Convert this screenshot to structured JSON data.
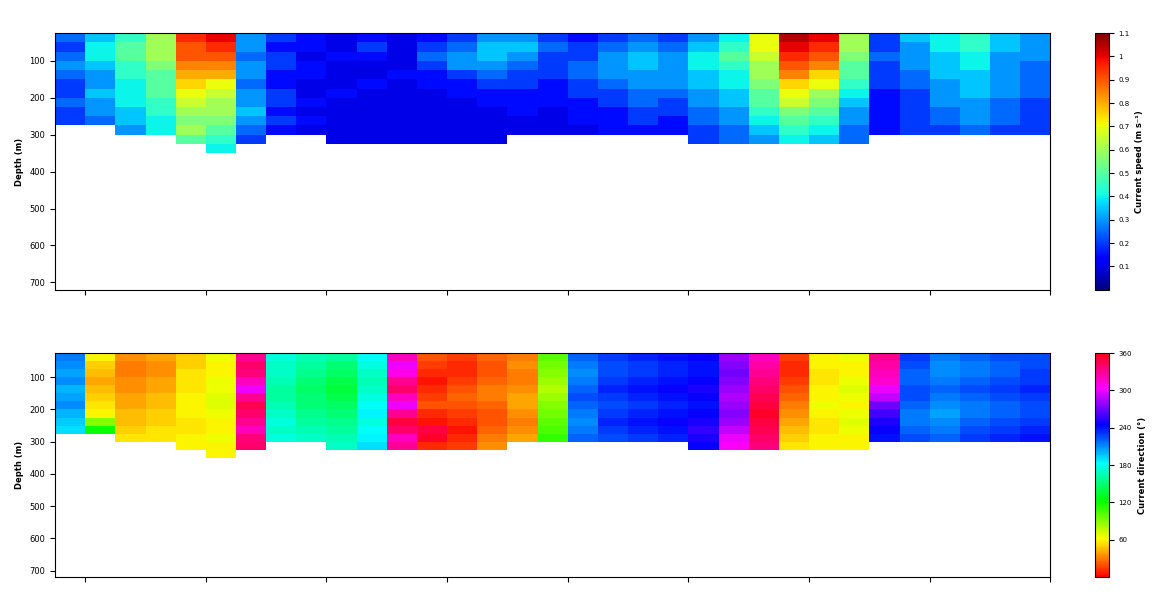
{
  "chart_data": [
    {
      "type": "heatmap",
      "y_label": "Depth (m)",
      "xlim": [
        0,
        33
      ],
      "xticks": [
        1,
        5,
        9,
        13,
        17,
        21,
        25,
        29,
        33
      ],
      "ylim": [
        720,
        25
      ],
      "yticks": [
        100,
        200,
        300,
        400,
        500,
        600,
        700
      ],
      "tick_labels": "y",
      "x_edges": [
        0,
        1,
        2,
        3,
        4,
        5,
        6,
        7,
        8,
        9,
        10,
        11,
        12,
        13,
        14,
        15,
        16,
        17,
        18,
        19,
        20,
        21,
        22,
        23,
        24,
        25,
        26,
        27,
        28,
        29,
        30,
        31,
        32,
        33
      ],
      "depth_edges": [
        25,
        50,
        75,
        100,
        125,
        150,
        175,
        200,
        225,
        250,
        275,
        300,
        325,
        350
      ],
      "colorbar": {
        "label": "Current speed (m s⁻¹)",
        "range": [
          0,
          1.1
        ],
        "ticks": [
          0.1,
          0.2,
          0.3,
          0.4,
          0.5,
          0.6,
          0.7,
          0.8,
          0.9,
          1,
          1.1
        ]
      },
      "cells": [
        [
          0.25,
          0.2,
          0.25,
          0.3,
          0.25,
          0.2,
          0.2,
          0.25,
          0.2,
          0.2,
          null,
          null,
          null
        ],
        [
          0.35,
          0.4,
          0.4,
          0.35,
          0.3,
          0.3,
          0.35,
          0.3,
          0.3,
          0.25,
          null,
          null,
          null
        ],
        [
          0.45,
          0.5,
          0.5,
          0.45,
          0.45,
          0.4,
          0.4,
          0.4,
          0.35,
          0.35,
          0.3,
          null,
          null
        ],
        [
          0.6,
          0.6,
          0.6,
          0.55,
          0.5,
          0.5,
          0.5,
          0.45,
          0.45,
          0.4,
          0.4,
          null,
          null
        ],
        [
          0.95,
          0.9,
          0.9,
          0.85,
          0.8,
          0.75,
          0.7,
          0.65,
          0.6,
          0.55,
          0.6,
          0.5,
          null
        ],
        [
          1.0,
          0.95,
          0.9,
          0.85,
          0.8,
          0.7,
          0.65,
          0.6,
          0.6,
          0.55,
          0.5,
          0.45,
          0.4
        ],
        [
          0.3,
          0.3,
          0.25,
          0.3,
          0.3,
          0.25,
          0.3,
          0.3,
          0.35,
          0.3,
          0.25,
          0.2,
          null
        ],
        [
          0.2,
          0.15,
          0.2,
          0.2,
          0.15,
          0.15,
          0.2,
          0.2,
          0.15,
          0.2,
          0.15,
          null,
          null
        ],
        [
          0.15,
          0.15,
          0.1,
          0.15,
          0.15,
          0.1,
          0.1,
          0.15,
          0.1,
          0.15,
          0.1,
          null,
          null
        ],
        [
          0.1,
          0.1,
          0.15,
          0.1,
          0.1,
          0.1,
          0.15,
          0.1,
          0.1,
          0.1,
          0.1,
          0.1,
          null
        ],
        [
          0.15,
          0.2,
          0.15,
          0.1,
          0.1,
          0.15,
          0.1,
          0.1,
          0.1,
          0.1,
          0.1,
          0.1,
          null
        ],
        [
          0.1,
          0.1,
          0.1,
          0.1,
          0.15,
          0.1,
          0.1,
          0.1,
          0.1,
          0.1,
          0.1,
          0.1,
          null
        ],
        [
          0.15,
          0.2,
          0.25,
          0.2,
          0.15,
          0.15,
          0.1,
          0.1,
          0.1,
          0.1,
          0.1,
          0.1,
          null
        ],
        [
          0.2,
          0.25,
          0.3,
          0.3,
          0.2,
          0.15,
          0.15,
          0.1,
          0.1,
          0.1,
          0.1,
          0.1,
          null
        ],
        [
          0.3,
          0.35,
          0.35,
          0.3,
          0.25,
          0.2,
          0.15,
          0.15,
          0.1,
          0.1,
          0.1,
          0.1,
          null
        ],
        [
          0.3,
          0.35,
          0.3,
          0.25,
          0.2,
          0.2,
          0.15,
          0.15,
          0.15,
          0.1,
          0.1,
          null,
          null
        ],
        [
          0.2,
          0.25,
          0.2,
          0.2,
          0.2,
          0.15,
          0.15,
          0.15,
          0.1,
          0.1,
          0.1,
          null,
          null
        ],
        [
          0.15,
          0.2,
          0.2,
          0.25,
          0.25,
          0.2,
          0.2,
          0.15,
          0.15,
          0.15,
          0.1,
          null,
          null
        ],
        [
          0.2,
          0.25,
          0.3,
          0.3,
          0.3,
          0.25,
          0.2,
          0.2,
          0.15,
          0.15,
          0.15,
          null,
          null
        ],
        [
          0.25,
          0.3,
          0.35,
          0.35,
          0.3,
          0.3,
          0.25,
          0.25,
          0.2,
          0.2,
          0.15,
          null,
          null
        ],
        [
          0.2,
          0.25,
          0.3,
          0.3,
          0.3,
          0.3,
          0.25,
          0.2,
          0.2,
          0.15,
          0.15,
          null,
          null
        ],
        [
          0.3,
          0.35,
          0.4,
          0.4,
          0.35,
          0.35,
          0.3,
          0.3,
          0.25,
          0.25,
          0.2,
          0.2,
          null
        ],
        [
          0.4,
          0.45,
          0.5,
          0.45,
          0.4,
          0.4,
          0.35,
          0.35,
          0.3,
          0.3,
          0.25,
          0.25,
          null
        ],
        [
          0.7,
          0.7,
          0.65,
          0.6,
          0.6,
          0.55,
          0.5,
          0.5,
          0.45,
          0.4,
          0.35,
          0.3,
          null
        ],
        [
          1.05,
          1.0,
          0.95,
          0.9,
          0.85,
          0.75,
          0.7,
          0.65,
          0.55,
          0.5,
          0.45,
          0.4,
          null
        ],
        [
          1.0,
          0.95,
          0.9,
          0.85,
          0.75,
          0.7,
          0.6,
          0.55,
          0.5,
          0.45,
          0.4,
          0.35,
          null
        ],
        [
          0.6,
          0.6,
          0.55,
          0.5,
          0.5,
          0.45,
          0.4,
          0.35,
          0.3,
          0.3,
          0.25,
          0.25,
          null
        ],
        [
          0.2,
          0.2,
          0.25,
          0.2,
          0.2,
          0.2,
          0.15,
          0.15,
          0.15,
          0.15,
          0.15,
          null,
          null
        ],
        [
          0.35,
          0.3,
          0.3,
          0.3,
          0.25,
          0.25,
          0.2,
          0.2,
          0.2,
          0.2,
          0.2,
          null,
          null
        ],
        [
          0.4,
          0.4,
          0.35,
          0.35,
          0.35,
          0.3,
          0.3,
          0.3,
          0.25,
          0.25,
          0.2,
          null,
          null
        ],
        [
          0.45,
          0.45,
          0.4,
          0.4,
          0.35,
          0.35,
          0.35,
          0.3,
          0.3,
          0.3,
          0.25,
          null,
          null
        ],
        [
          0.35,
          0.35,
          0.3,
          0.3,
          0.3,
          0.3,
          0.3,
          0.25,
          0.25,
          0.25,
          0.2,
          null,
          null
        ],
        [
          0.3,
          0.3,
          0.3,
          0.25,
          0.25,
          0.25,
          0.25,
          0.2,
          0.2,
          0.2,
          0.2,
          null,
          null
        ]
      ]
    },
    {
      "type": "heatmap",
      "y_label": "Depth (m)",
      "xlim": [
        0,
        33
      ],
      "xticks": [
        1,
        5,
        9,
        13,
        17,
        21,
        25,
        29,
        33
      ],
      "ylim": [
        720,
        25
      ],
      "yticks": [
        100,
        200,
        300,
        400,
        500,
        600,
        700
      ],
      "tick_labels": "y",
      "x_edges": [
        0,
        1,
        2,
        3,
        4,
        5,
        6,
        7,
        8,
        9,
        10,
        11,
        12,
        13,
        14,
        15,
        16,
        17,
        18,
        19,
        20,
        21,
        22,
        23,
        24,
        25,
        26,
        27,
        28,
        29,
        30,
        31,
        32,
        33
      ],
      "depth_edges": [
        25,
        50,
        75,
        100,
        125,
        150,
        175,
        200,
        225,
        250,
        275,
        300,
        325,
        350
      ],
      "colorbar": {
        "label": "Current direction (°)",
        "range": [
          0,
          360
        ],
        "ticks": [
          60,
          120,
          180,
          240,
          300,
          360
        ]
      },
      "cells": [
        [
          215,
          210,
          205,
          210,
          200,
          205,
          210,
          200,
          195,
          190,
          null,
          null,
          null
        ],
        [
          60,
          50,
          45,
          40,
          45,
          50,
          55,
          60,
          90,
          120,
          null,
          null,
          null
        ],
        [
          35,
          30,
          30,
          35,
          35,
          40,
          40,
          45,
          45,
          50,
          55,
          null,
          null
        ],
        [
          40,
          35,
          35,
          40,
          40,
          45,
          45,
          50,
          50,
          55,
          55,
          null,
          null
        ],
        [
          50,
          50,
          55,
          55,
          55,
          60,
          60,
          60,
          55,
          55,
          60,
          60,
          null
        ],
        [
          65,
          60,
          60,
          65,
          65,
          70,
          70,
          65,
          60,
          60,
          65,
          60,
          60
        ],
        [
          330,
          340,
          335,
          320,
          300,
          330,
          345,
          340,
          330,
          320,
          335,
          340,
          null
        ],
        [
          175,
          170,
          170,
          165,
          160,
          160,
          165,
          170,
          175,
          170,
          175,
          null,
          null
        ],
        [
          165,
          160,
          155,
          150,
          145,
          150,
          150,
          155,
          160,
          165,
          170,
          null,
          null
        ],
        [
          160,
          150,
          145,
          140,
          135,
          140,
          145,
          150,
          155,
          160,
          165,
          170,
          null
        ],
        [
          180,
          175,
          170,
          165,
          170,
          175,
          180,
          185,
          175,
          180,
          185,
          190,
          null
        ],
        [
          320,
          300,
          310,
          330,
          340,
          320,
          300,
          330,
          350,
          340,
          320,
          330,
          null
        ],
        [
          20,
          15,
          10,
          5,
          10,
          15,
          20,
          10,
          5,
          350,
          355,
          10,
          null
        ],
        [
          15,
          10,
          10,
          15,
          20,
          25,
          20,
          15,
          10,
          5,
          10,
          15,
          null
        ],
        [
          25,
          20,
          20,
          25,
          30,
          30,
          25,
          20,
          20,
          25,
          30,
          35,
          null
        ],
        [
          30,
          35,
          30,
          30,
          35,
          40,
          40,
          35,
          30,
          35,
          40,
          null,
          null
        ],
        [
          100,
          95,
          90,
          85,
          80,
          85,
          90,
          95,
          100,
          105,
          110,
          null,
          null
        ],
        [
          220,
          215,
          210,
          215,
          220,
          225,
          220,
          215,
          210,
          215,
          220,
          null,
          null
        ],
        [
          230,
          225,
          225,
          230,
          235,
          230,
          225,
          230,
          235,
          230,
          225,
          null,
          null
        ],
        [
          235,
          230,
          230,
          235,
          240,
          235,
          230,
          235,
          240,
          235,
          230,
          null,
          null
        ],
        [
          240,
          235,
          235,
          240,
          245,
          240,
          235,
          240,
          245,
          240,
          235,
          null,
          null
        ],
        [
          245,
          240,
          240,
          245,
          250,
          245,
          240,
          245,
          250,
          255,
          250,
          245,
          null
        ],
        [
          280,
          275,
          270,
          275,
          280,
          285,
          280,
          275,
          280,
          290,
          300,
          305,
          null
        ],
        [
          320,
          325,
          330,
          335,
          340,
          345,
          350,
          355,
          350,
          345,
          340,
          335,
          null
        ],
        [
          15,
          10,
          10,
          15,
          20,
          25,
          30,
          35,
          40,
          45,
          50,
          55,
          null
        ],
        [
          60,
          60,
          55,
          55,
          60,
          60,
          65,
          60,
          55,
          55,
          60,
          60,
          null
        ],
        [
          65,
          60,
          60,
          65,
          70,
          65,
          60,
          65,
          70,
          65,
          60,
          60,
          null
        ],
        [
          330,
          325,
          320,
          315,
          300,
          290,
          270,
          260,
          250,
          245,
          240,
          null,
          null
        ],
        [
          230,
          225,
          220,
          220,
          225,
          225,
          220,
          215,
          215,
          220,
          225,
          null,
          null
        ],
        [
          215,
          210,
          210,
          215,
          220,
          215,
          210,
          205,
          210,
          215,
          220,
          null,
          null
        ],
        [
          220,
          215,
          215,
          220,
          225,
          220,
          215,
          215,
          220,
          225,
          230,
          null,
          null
        ],
        [
          225,
          220,
          220,
          225,
          230,
          225,
          220,
          220,
          225,
          230,
          235,
          null,
          null
        ],
        [
          225,
          225,
          230,
          230,
          235,
          230,
          225,
          225,
          230,
          235,
          240,
          null,
          null
        ]
      ]
    }
  ]
}
